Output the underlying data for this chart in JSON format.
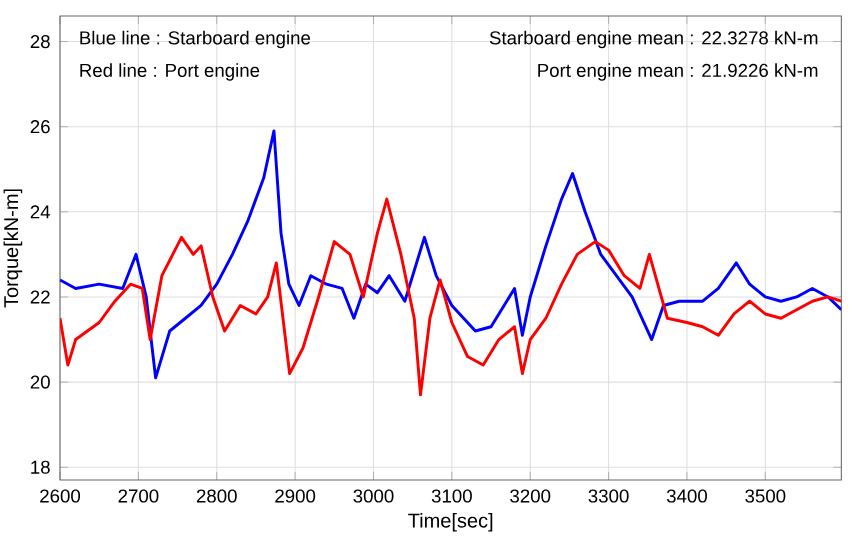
{
  "chart_data": {
    "type": "line",
    "xlabel": "Time[sec]",
    "ylabel": "Torque[kN-m]",
    "annotations": [
      "Blue line : Starboard engine",
      "Red line : Port engine",
      "Starboard engine mean : 22.3278 kN-m",
      "Port engine mean : 21.9226 kN-m"
    ],
    "xlim": [
      2600,
      3597
    ],
    "ylim": [
      17.7,
      28.6
    ],
    "xticks": [
      2600,
      2700,
      2800,
      2900,
      3000,
      3100,
      3200,
      3300,
      3400,
      3500
    ],
    "yticks": [
      18,
      20,
      22,
      24,
      26,
      28
    ],
    "grid": true,
    "marker": "none",
    "line_style": "solid",
    "series": [
      {
        "color": "#0000ff",
        "x": [
          2600,
          2620,
          2650,
          2680,
          2697,
          2710,
          2722,
          2740,
          2760,
          2780,
          2800,
          2820,
          2840,
          2860,
          2873,
          2882,
          2892,
          2905,
          2920,
          2940,
          2960,
          2975,
          2990,
          3005,
          3020,
          3040,
          3065,
          3080,
          3100,
          3130,
          3150,
          3170,
          3180,
          3190,
          3200,
          3220,
          3240,
          3254,
          3270,
          3290,
          3310,
          3330,
          3355,
          3370,
          3390,
          3420,
          3440,
          3463,
          3480,
          3500,
          3520,
          3540,
          3560,
          3580,
          3597
        ],
        "values": [
          22.4,
          22.2,
          22.3,
          22.2,
          23.0,
          22.0,
          20.1,
          21.2,
          21.5,
          21.8,
          22.3,
          23.0,
          23.8,
          24.8,
          25.9,
          23.5,
          22.3,
          21.8,
          22.5,
          22.3,
          22.2,
          21.5,
          22.3,
          22.1,
          22.5,
          21.9,
          23.4,
          22.5,
          21.8,
          21.2,
          21.3,
          21.9,
          22.2,
          21.1,
          22.0,
          23.2,
          24.3,
          24.9,
          24.0,
          23.0,
          22.5,
          22.0,
          21.0,
          21.8,
          21.9,
          21.9,
          22.2,
          22.8,
          22.3,
          22.0,
          21.9,
          22.0,
          22.2,
          22.0,
          21.7
        ]
      },
      {
        "color": "#ff0000",
        "x": [
          2600,
          2610,
          2620,
          2650,
          2670,
          2690,
          2705,
          2715,
          2730,
          2755,
          2770,
          2780,
          2795,
          2810,
          2830,
          2850,
          2865,
          2876,
          2893,
          2910,
          2930,
          2950,
          2970,
          2987,
          3005,
          3017,
          3035,
          3052,
          3060,
          3072,
          3085,
          3100,
          3120,
          3140,
          3160,
          3180,
          3190,
          3200,
          3220,
          3240,
          3260,
          3283,
          3300,
          3320,
          3340,
          3352,
          3375,
          3400,
          3420,
          3440,
          3460,
          3480,
          3500,
          3520,
          3540,
          3560,
          3580,
          3597
        ],
        "values": [
          21.5,
          20.4,
          21.0,
          21.4,
          21.9,
          22.3,
          22.2,
          21.0,
          22.5,
          23.4,
          23.0,
          23.2,
          22.0,
          21.2,
          21.8,
          21.6,
          22.0,
          22.8,
          20.2,
          20.8,
          22.0,
          23.3,
          23.0,
          22.0,
          23.5,
          24.3,
          23.0,
          21.5,
          19.7,
          21.5,
          22.4,
          21.4,
          20.6,
          20.4,
          21.0,
          21.3,
          20.2,
          21.0,
          21.5,
          22.3,
          23.0,
          23.3,
          23.1,
          22.5,
          22.2,
          23.0,
          21.5,
          21.4,
          21.3,
          21.1,
          21.6,
          21.9,
          21.6,
          21.5,
          21.7,
          21.9,
          22.0,
          21.9
        ]
      }
    ]
  }
}
